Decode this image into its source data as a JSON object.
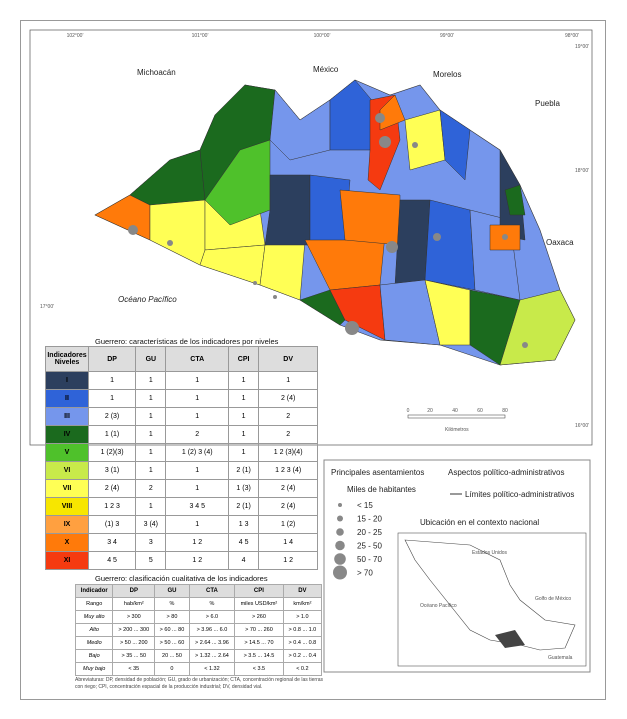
{
  "map": {
    "coords_top": [
      "102°00'",
      "101°00'",
      "100°00'",
      "99°00'",
      "98°00'"
    ],
    "coords_side": [
      "19°00'",
      "18°00'",
      "17°00'",
      "16°00'"
    ],
    "states": [
      "Michoacán",
      "México",
      "Morelos",
      "Puebla",
      "Oaxaca"
    ],
    "ocean": "Océano Pacífico",
    "scale": [
      "0",
      "20",
      "40",
      "60",
      "80"
    ],
    "scale_unit": "Kilómetros"
  },
  "table1": {
    "title": "Guerrero: características de los indicadores por niveles",
    "header": [
      "Indicadores Niveles",
      "DP",
      "GU",
      "CTA",
      "CPI",
      "DV"
    ],
    "rows": [
      {
        "level": "I",
        "color": "#2c3f5e",
        "cells": [
          "1",
          "1",
          "1",
          "1",
          "1"
        ]
      },
      {
        "level": "II",
        "color": "#2f63d8",
        "cells": [
          "1",
          "1",
          "1",
          "1",
          "2 (4)"
        ]
      },
      {
        "level": "III",
        "color": "#7596ec",
        "cells": [
          "2 (3)",
          "1",
          "1",
          "1",
          "2"
        ]
      },
      {
        "level": "IV",
        "color": "#1b6a1e",
        "cells": [
          "1 (1)",
          "1",
          "2",
          "1",
          "2"
        ]
      },
      {
        "level": "V",
        "color": "#4fc12b",
        "cells": [
          "1 (2)(3)",
          "1",
          "1 (2) 3 (4)",
          "1",
          "1 2 (3)(4)"
        ]
      },
      {
        "level": "VI",
        "color": "#c8ea4a",
        "cells": [
          "3 (1)",
          "1",
          "1",
          "2 (1)",
          "1 2 3 (4)"
        ]
      },
      {
        "level": "VII",
        "color": "#ffff55",
        "cells": [
          "2 (4)",
          "2",
          "1",
          "1 (3)",
          "2 (4)"
        ]
      },
      {
        "level": "VIII",
        "color": "#f7e600",
        "cells": [
          "1 2 3",
          "1",
          "3 4 5",
          "2 (1)",
          "2 (4)"
        ]
      },
      {
        "level": "IX",
        "color": "#ffa040",
        "cells": [
          "(1) 3",
          "3 (4)",
          "1",
          "1 3",
          "1 (2)"
        ]
      },
      {
        "level": "X",
        "color": "#ff7a0a",
        "cells": [
          "3 4",
          "3",
          "1 2",
          "4 5",
          "1 4"
        ]
      },
      {
        "level": "XI",
        "color": "#f53a10",
        "cells": [
          "4 5",
          "5",
          "1 2",
          "4",
          "1 2"
        ]
      }
    ]
  },
  "legend": {
    "settlements": "Principales asentamientos",
    "unit": "Miles de habitantes",
    "classes": [
      "< 15",
      "15 - 20",
      "20 - 25",
      "25 - 50",
      "50 - 70",
      "> 70"
    ],
    "political": "Aspectos político-administrativos",
    "limits": "Límites político-administrativos"
  },
  "inset": {
    "title": "Ubicación en el contexto nacional",
    "labels": [
      "Estados Unidos",
      "Golfo de México",
      "Océano Pacífico",
      "Guatemala"
    ]
  },
  "table2": {
    "title": "Guerrero: clasificación cualitativa de los indicadores",
    "header": [
      "Indicador",
      "DP",
      "GU",
      "CTA",
      "CPI",
      "DV"
    ],
    "units": [
      "Rango",
      "hab/km²",
      "%",
      "%",
      "miles USD/km²",
      "km/km²"
    ],
    "rows": [
      [
        "Muy alto",
        "> 300",
        "> 80",
        "> 6.0",
        "> 260",
        "> 1.0"
      ],
      [
        "Alto",
        "> 200 ... 300",
        "> 60 ... 80",
        "> 3.96 ... 6.0",
        "> 70 ... 260",
        "> 0.8 ... 1.0"
      ],
      [
        "Medio",
        "> 50 ... 200",
        "> 50 ... 60",
        "> 2.64 ... 3.96",
        "> 14.5 ... 70",
        "> 0.4 ... 0.8"
      ],
      [
        "Bajo",
        "> 35 ... 50",
        "20 ... 50",
        "> 1.32 ... 2.64",
        "> 3.5 ... 14.5",
        "> 0.2 ... 0.4"
      ],
      [
        "Muy bajo",
        "< 35",
        "0",
        "< 1.32",
        "< 3.5",
        "< 0.2"
      ]
    ]
  },
  "footnote": "Abreviaturas: DP, densidad de población; GU, grado de urbanización; CTA, concentración regional de las tierras con riego; CPI, concentración espacial de la producción industrial; DV, densidad vial."
}
